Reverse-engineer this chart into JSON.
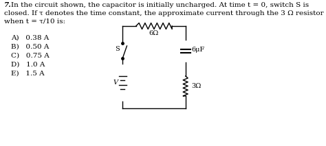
{
  "title_number": "7.",
  "question_line1": "In the circuit shown, the capacitor is initially uncharged. At time t = 0, switch S is",
  "question_line2": "closed. If τ denotes the time constant, the approximate current through the 3 Ω resistor",
  "question_line3": "when t = τ/10 is:",
  "answers": [
    "A)   0.38 A",
    "B)   0.50 A",
    "C)   0.75 A",
    "D)   1.0 A",
    "E)   1.5 A"
  ],
  "circuit": {
    "resistor_top": "6Ω",
    "capacitor": "6μF",
    "resistor_right": "3Ω",
    "voltage_label": "V",
    "switch_label": "S"
  },
  "bg_color": "#ffffff",
  "text_color": "#000000",
  "font_size": 7.5
}
